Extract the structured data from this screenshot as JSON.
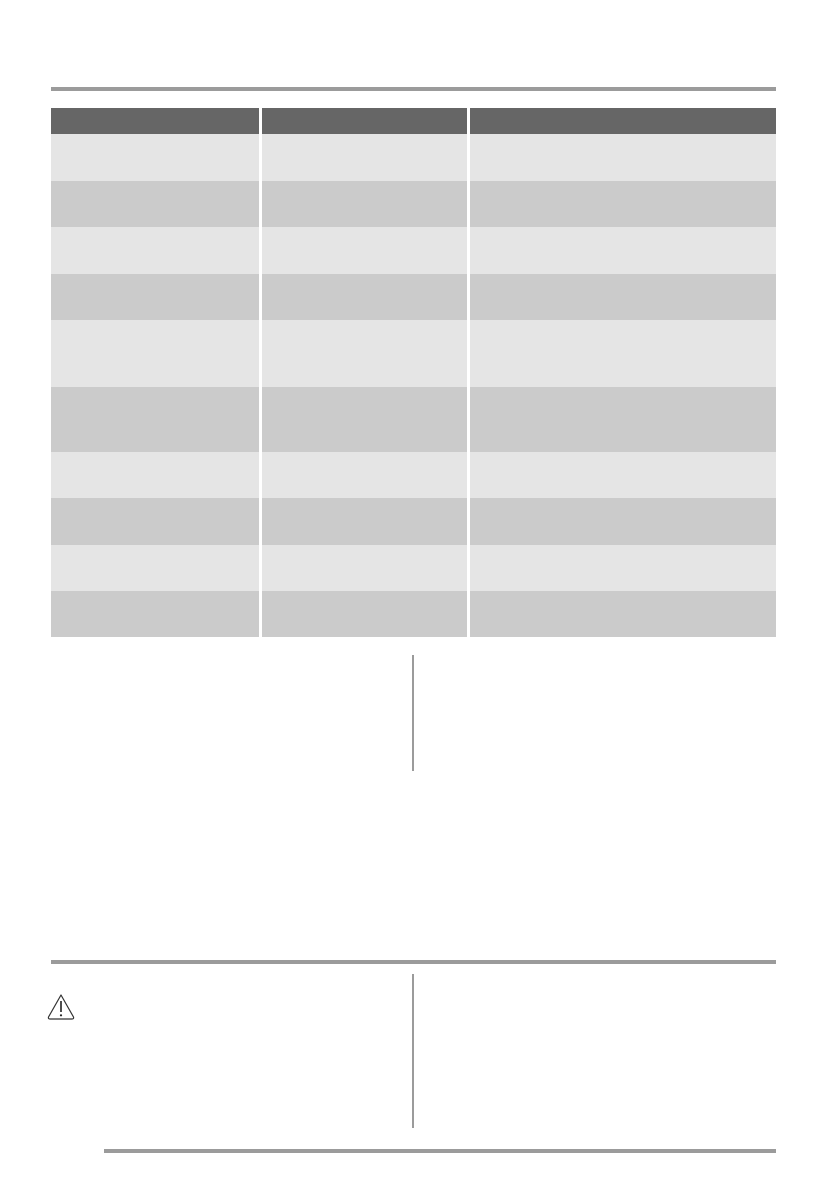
{
  "colors": {
    "rule": "#9b9b9b",
    "table_header": "#666666",
    "row_light": "#e5e5e5",
    "row_dark": "#cbcbcb"
  },
  "icons": {
    "warning": "warning-triangle-icon"
  },
  "table": {
    "header": [
      "",
      "",
      ""
    ]
  }
}
